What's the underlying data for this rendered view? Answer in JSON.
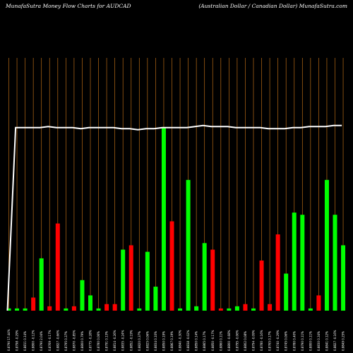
{
  "header": {
    "left": "MunafaSutra  Money Flow  Charts for AUDCAD",
    "right": "(Australian  Dollar / Canadian  Dollar) MunafaSutra.com"
  },
  "chart_data": {
    "type": "bar",
    "title": "MunafaSutra  Money Flow  Charts for AUDCAD",
    "subtitle": "(Australian  Dollar / Canadian  Dollar) MunafaSutra.com",
    "categories": [
      "0.8790 17.44%",
      "0.8798 -0.29%",
      "0.8811 0.14%",
      "0.8800 -0.12%",
      "0.8790 2.04%",
      "0.8769 -0.17%",
      "0.8827 -0.66%",
      "0.8795 0.37%",
      "0.8870 -0.85%",
      "0.8800 0.79%",
      "0.8775 -0.28%",
      "0.8780 0.06%",
      "0.8791 0.13%",
      "0.8814 -0.26%",
      "0.8835 -0.24%",
      "0.8852 -0.19%",
      "0.8820 0.37%",
      "0.8825 0.06%",
      "0.8834 0.10%",
      "0.8850 0.19%",
      "0.8867 0.19%",
      "0.8840 -0.30%",
      "0.8838 -0.02%",
      "0.8850 0.14%",
      "0.8865 0.17%",
      "0.8850 -0.17%",
      "0.8860 0.11%",
      "0.8800 -0.68%",
      "0.8795 -0.06%",
      "0.8802 0.08%",
      "0.8794 -0.09%",
      "0.8780 -0.16%",
      "0.8765 0.17%",
      "0.8740 -0.29%",
      "0.8745 0.06%",
      "0.8780 0.40%",
      "0.8790 0.11%",
      "0.8800 0.11%",
      "0.8830 0.34%",
      "0.8841 0.12%",
      "0.8827 -0.16%",
      "0.8849 0.25%"
    ],
    "series": [
      {
        "values": [
          1,
          1,
          1,
          6,
          24,
          2,
          40,
          1,
          2,
          14,
          7,
          1,
          3,
          3,
          28,
          30,
          1,
          27,
          11,
          84,
          41,
          1,
          60,
          2,
          31,
          28,
          1,
          1,
          2,
          3,
          1,
          23,
          3,
          35,
          17,
          45,
          44,
          1,
          7,
          60,
          44,
          30
        ],
        "colors": [
          "#00ff00",
          "#00ff00",
          "#00ff00",
          "#ff0000",
          "#00ff00",
          "#ff0000",
          "#ff0000",
          "#00ff00",
          "#ff0000",
          "#00ff00",
          "#00ff00",
          "#00ff00",
          "#ff0000",
          "#ff0000",
          "#00ff00",
          "#ff0000",
          "#00ff00",
          "#00ff00",
          "#00ff00",
          "#00ff00",
          "#ff0000",
          "#00ff00",
          "#00ff00",
          "#00ff00",
          "#00ff00",
          "#ff0000",
          "#ff0000",
          "#00ff00",
          "#00ff00",
          "#ff0000",
          "#00ff00",
          "#ff0000",
          "#ff0000",
          "#ff0000",
          "#00ff00",
          "#00ff00",
          "#00ff00",
          "#00ff00",
          "#ff0000",
          "#00ff00",
          "#00ff00",
          "#00ff00"
        ]
      }
    ],
    "line_values": [
      0,
      84,
      84,
      84,
      84,
      84.5,
      84,
      84,
      84,
      83.5,
      84,
      84,
      84,
      84,
      83.5,
      83.5,
      83,
      83.5,
      83.5,
      84,
      84,
      84,
      84,
      84.5,
      85,
      84.5,
      84.5,
      84.5,
      84,
      84,
      84,
      84,
      83.5,
      83.5,
      83.5,
      84,
      84,
      84.5,
      84.5,
      84.5,
      85,
      85
    ],
    "ylim": [
      0,
      116
    ],
    "colors": {
      "background": "#000000",
      "grid": "#b86b16",
      "up": "#00ff00",
      "down": "#ff0000",
      "line": "#ffffff"
    },
    "grid": true
  }
}
